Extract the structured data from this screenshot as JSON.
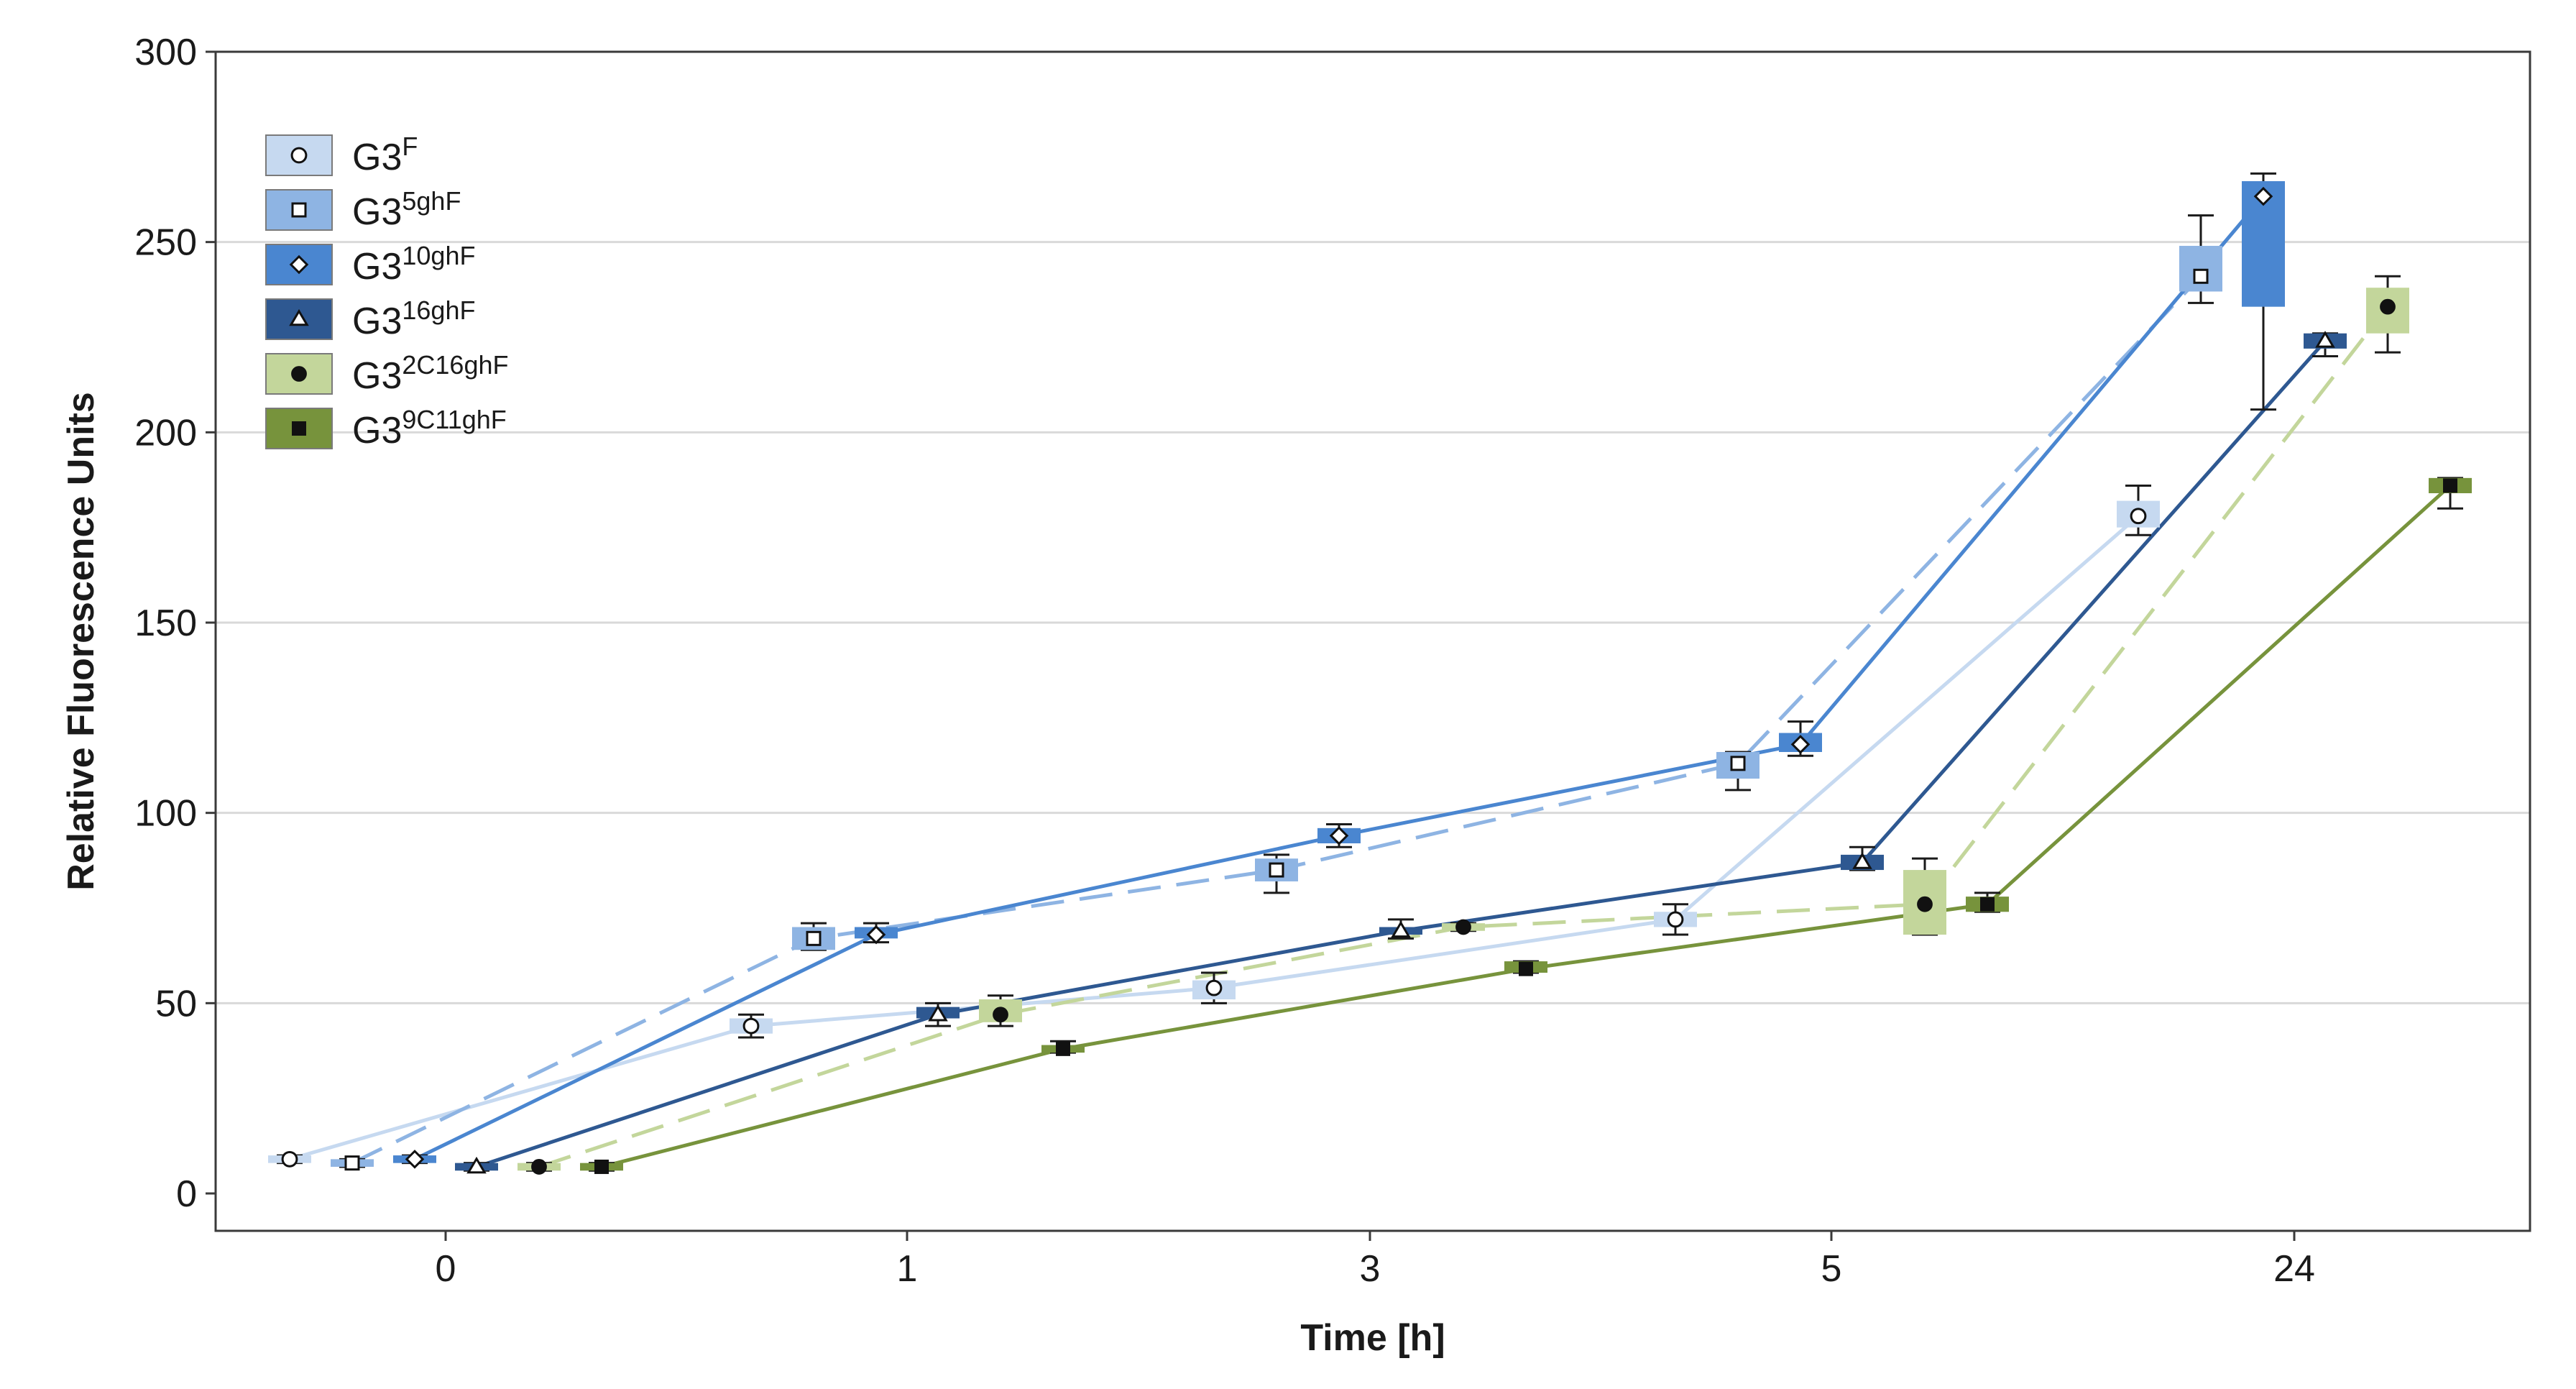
{
  "chart_data": {
    "type": "box-line",
    "xlabel": "Time [h]",
    "ylabel": "Relative Fluorescence Units",
    "categories": [
      "0",
      "1",
      "3",
      "5",
      "24"
    ],
    "ylim": [
      0,
      300
    ],
    "yticks": [
      0,
      50,
      100,
      150,
      200,
      250,
      300
    ],
    "grid": true,
    "legend_position": "top-left",
    "series": [
      {
        "name": "G3F",
        "base": "G3",
        "sup": "F",
        "color": "#c6d9f0",
        "marker": "circle",
        "line": "solid",
        "values": [
          9,
          44,
          54,
          72,
          178
        ],
        "box_low": [
          8,
          42,
          51,
          70,
          175
        ],
        "box_high": [
          10,
          46,
          56,
          74,
          182
        ],
        "err_low": [
          8,
          41,
          50,
          68,
          173
        ],
        "err_high": [
          10,
          47,
          58,
          76,
          186
        ]
      },
      {
        "name": "G35ghF",
        "base": "G3",
        "sup": "5ghF",
        "color": "#8eb4e3",
        "marker": "square",
        "line": "dashed",
        "values": [
          8,
          67,
          85,
          113,
          241
        ],
        "box_low": [
          7,
          64,
          82,
          109,
          237
        ],
        "box_high": [
          9,
          70,
          88,
          116,
          249
        ],
        "err_low": [
          7,
          64,
          79,
          106,
          234
        ],
        "err_high": [
          9,
          71,
          89,
          116,
          257
        ]
      },
      {
        "name": "G310ghF",
        "base": "G3",
        "sup": "10ghF",
        "color": "#4a86d0",
        "marker": "diamond",
        "line": "solid",
        "values": [
          9,
          68,
          94,
          118,
          262
        ],
        "box_low": [
          8,
          67,
          92,
          116,
          233
        ],
        "box_high": [
          10,
          70,
          96,
          121,
          266
        ],
        "err_low": [
          8,
          66,
          91,
          115,
          206
        ],
        "err_high": [
          10,
          71,
          97,
          124,
          268
        ]
      },
      {
        "name": "G316ghF",
        "base": "G3",
        "sup": "16ghF",
        "color": "#2e5891",
        "marker": "triangle",
        "line": "solid",
        "values": [
          7,
          47,
          69,
          87,
          224
        ],
        "box_low": [
          6,
          46,
          68,
          85,
          222
        ],
        "box_high": [
          8,
          49,
          70,
          89,
          226
        ],
        "err_low": [
          6,
          44,
          67,
          85,
          220
        ],
        "err_high": [
          8,
          50,
          72,
          91,
          226
        ]
      },
      {
        "name": "G32C16ghF",
        "base": "G3",
        "sup": "2C16ghF",
        "color": "#c3d69b",
        "marker": "circle-filled",
        "line": "dashed",
        "values": [
          7,
          47,
          70,
          76,
          233
        ],
        "box_low": [
          6,
          45,
          69,
          68,
          226
        ],
        "box_high": [
          8,
          51,
          71,
          85,
          238
        ],
        "err_low": [
          6,
          44,
          69,
          68,
          221
        ],
        "err_high": [
          8,
          52,
          71,
          88,
          241
        ]
      },
      {
        "name": "G39C11ghF",
        "base": "G3",
        "sup": "9C11ghF",
        "color": "#77933c",
        "marker": "square-filled",
        "line": "solid",
        "values": [
          7,
          38,
          59,
          76,
          186
        ],
        "box_low": [
          6,
          37,
          58,
          74,
          184
        ],
        "box_high": [
          8,
          39,
          61,
          78,
          188
        ],
        "err_low": [
          6,
          37,
          58,
          74,
          180
        ],
        "err_high": [
          8,
          40,
          61,
          79,
          188
        ]
      }
    ]
  }
}
